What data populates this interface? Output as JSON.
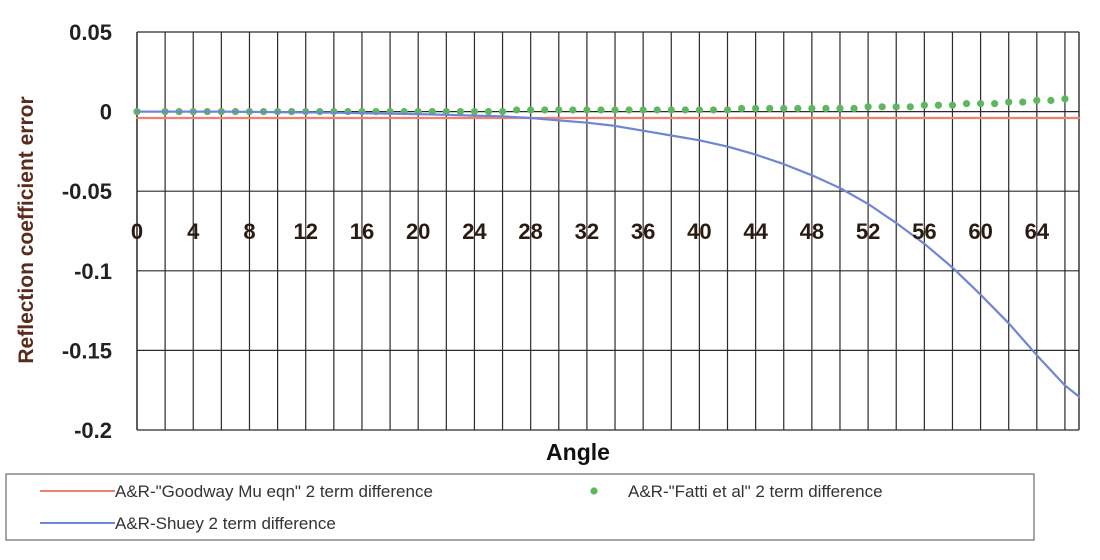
{
  "chart_data": {
    "type": "line",
    "title": "",
    "xlabel": "Angle",
    "ylabel": "Reflection coefficient error",
    "xlim": [
      0,
      67
    ],
    "ylim": [
      -0.2,
      0.05
    ],
    "x_ticks": [
      "0",
      "4",
      "8",
      "12",
      "16",
      "20",
      "24",
      "28",
      "32",
      "36",
      "40",
      "44",
      "48",
      "52",
      "56",
      "60",
      "64"
    ],
    "y_ticks": [
      "0.05",
      "0",
      "-0.05",
      "-0.1",
      "-0.15",
      "-0.2"
    ],
    "grid": "on",
    "legend_position": "bottom",
    "x": [
      0,
      2,
      4,
      6,
      8,
      10,
      12,
      14,
      16,
      18,
      20,
      22,
      24,
      26,
      28,
      30,
      32,
      34,
      36,
      38,
      40,
      42,
      44,
      46,
      48,
      50,
      52,
      54,
      56,
      58,
      60,
      62,
      64,
      66,
      67
    ],
    "series": [
      {
        "name": "A&R-\"Goodway Mu eqn\" 2 term difference",
        "style": "line",
        "color": "#f08070",
        "values": [
          -0.004,
          -0.004,
          -0.004,
          -0.004,
          -0.004,
          -0.004,
          -0.004,
          -0.004,
          -0.004,
          -0.004,
          -0.004,
          -0.004,
          -0.004,
          -0.004,
          -0.004,
          -0.004,
          -0.004,
          -0.004,
          -0.004,
          -0.004,
          -0.004,
          -0.004,
          -0.004,
          -0.004,
          -0.004,
          -0.004,
          -0.004,
          -0.004,
          -0.004,
          -0.004,
          -0.004,
          -0.004,
          -0.004,
          -0.004,
          -0.004
        ]
      },
      {
        "name": "A&R-\"Fatti et al\" 2 term difference",
        "style": "dots",
        "color": "#5cb85c",
        "x": [
          0,
          2,
          3,
          4,
          5,
          6,
          7,
          8,
          9,
          10,
          11,
          12,
          13,
          14,
          15,
          16,
          17,
          18,
          19,
          20,
          21,
          22,
          23,
          24,
          25,
          26,
          27,
          28,
          29,
          30,
          31,
          32,
          33,
          34,
          35,
          36,
          37,
          38,
          39,
          40,
          41,
          42,
          43,
          44,
          45,
          46,
          47,
          48,
          49,
          50,
          51,
          52,
          53,
          54,
          55,
          56,
          57,
          58,
          59,
          60,
          61,
          62,
          63,
          64,
          65,
          66
        ],
        "values": [
          0,
          0,
          0,
          0,
          0,
          0,
          0,
          0,
          0,
          0,
          0,
          0,
          0,
          0,
          0,
          0,
          0,
          0,
          0,
          0,
          0,
          0,
          0,
          0,
          0,
          0,
          0.001,
          0.001,
          0.001,
          0.001,
          0.001,
          0.001,
          0.001,
          0.001,
          0.001,
          0.001,
          0.001,
          0.001,
          0.001,
          0.001,
          0.001,
          0.001,
          0.002,
          0.002,
          0.002,
          0.002,
          0.002,
          0.002,
          0.002,
          0.002,
          0.002,
          0.003,
          0.003,
          0.003,
          0.003,
          0.004,
          0.004,
          0.004,
          0.005,
          0.005,
          0.005,
          0.006,
          0.006,
          0.007,
          0.007,
          0.008
        ]
      },
      {
        "name": "A&R-Shuey 2 term difference",
        "style": "line",
        "color": "#6f86d6",
        "values": [
          0,
          0,
          0,
          0,
          -0.0002,
          -0.0003,
          -0.0005,
          -0.0007,
          -0.001,
          -0.0013,
          -0.0016,
          -0.002,
          -0.0025,
          -0.003,
          -0.004,
          -0.0055,
          -0.007,
          -0.009,
          -0.012,
          -0.015,
          -0.018,
          -0.022,
          -0.027,
          -0.033,
          -0.04,
          -0.048,
          -0.058,
          -0.07,
          -0.083,
          -0.098,
          -0.115,
          -0.133,
          -0.153,
          -0.172,
          -0.179
        ]
      }
    ]
  },
  "legend": {
    "goodway": "A&R-\"Goodway Mu eqn\" 2 term difference",
    "fatti": "A&R-\"Fatti et al\" 2 term difference",
    "shuey": "A&R-Shuey 2 term difference"
  }
}
